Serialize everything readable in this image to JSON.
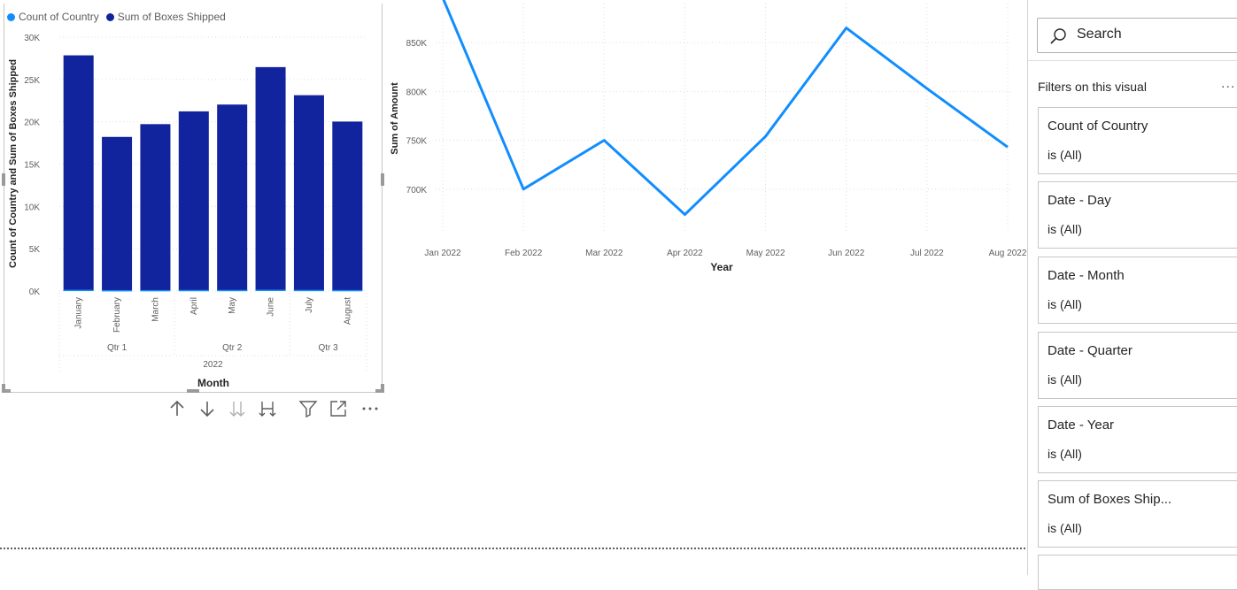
{
  "colors": {
    "bar": "#12239e",
    "count_series": "#118dff",
    "line": "#118dff",
    "grid": "#e1dfdd",
    "axis_text": "#605e5c",
    "title_text": "#252423"
  },
  "bar_visual": {
    "legend": [
      {
        "label": "Count of Country",
        "color": "#118dff"
      },
      {
        "label": "Sum of Boxes Shipped",
        "color": "#12239e"
      }
    ],
    "toolbar_icons": [
      "drill-up-icon",
      "drill-down-icon",
      "expand-all-down-icon",
      "expand-next-level-icon",
      "filter-icon",
      "focus-mode-icon",
      "more-options-icon"
    ]
  },
  "chart_data": [
    {
      "type": "bar",
      "stacked": true,
      "categories": [
        "January",
        "February",
        "March",
        "April",
        "May",
        "June",
        "July",
        "August"
      ],
      "groups": [
        {
          "label": "Qtr 1",
          "span": 3
        },
        {
          "label": "Qtr 2",
          "span": 3
        },
        {
          "label": "Qtr 3",
          "span": 2
        }
      ],
      "year_label": "2022",
      "series": [
        {
          "name": "Count of Country",
          "values": [
            150,
            110,
            120,
            130,
            135,
            160,
            140,
            125
          ]
        },
        {
          "name": "Sum of Boxes Shipped",
          "values": [
            27700,
            18100,
            19600,
            21100,
            21900,
            26300,
            23000,
            19900
          ]
        }
      ],
      "xlabel": "Month",
      "ylabel": "Count of Country and Sum of Boxes Shipped",
      "ylim": [
        0,
        30000
      ],
      "yticks": [
        0,
        5000,
        10000,
        15000,
        20000,
        25000,
        30000
      ],
      "ytick_labels": [
        "0K",
        "5K",
        "10K",
        "15K",
        "20K",
        "25K",
        "30K"
      ],
      "grid": true,
      "legend_position": "top-left"
    },
    {
      "type": "line",
      "x": [
        "Jan 2022",
        "Feb 2022",
        "Mar 2022",
        "Apr 2022",
        "May 2022",
        "Jun 2022",
        "Jul 2022",
        "Aug 2022"
      ],
      "series": [
        {
          "values": [
            896000,
            700000,
            750000,
            674000,
            754000,
            865000,
            803000,
            743000
          ]
        }
      ],
      "xlabel": "Year",
      "ylabel": "Sum of Amount",
      "ylim": [
        660000,
        890000
      ],
      "yticks": [
        700000,
        750000,
        800000,
        850000
      ],
      "ytick_labels": [
        "700K",
        "750K",
        "800K",
        "850K"
      ],
      "grid": true
    }
  ],
  "filter_pane": {
    "search_placeholder": "Search",
    "heading": "Filters on this visual",
    "more": "...",
    "cards": [
      {
        "title": "Count of Country",
        "value": "is (All)"
      },
      {
        "title": "Date - Day",
        "value": "is (All)"
      },
      {
        "title": "Date - Month",
        "value": "is (All)"
      },
      {
        "title": "Date - Quarter",
        "value": "is (All)"
      },
      {
        "title": "Date - Year",
        "value": "is (All)"
      },
      {
        "title": "Sum of Boxes Ship...",
        "value": "is (All)"
      }
    ]
  }
}
